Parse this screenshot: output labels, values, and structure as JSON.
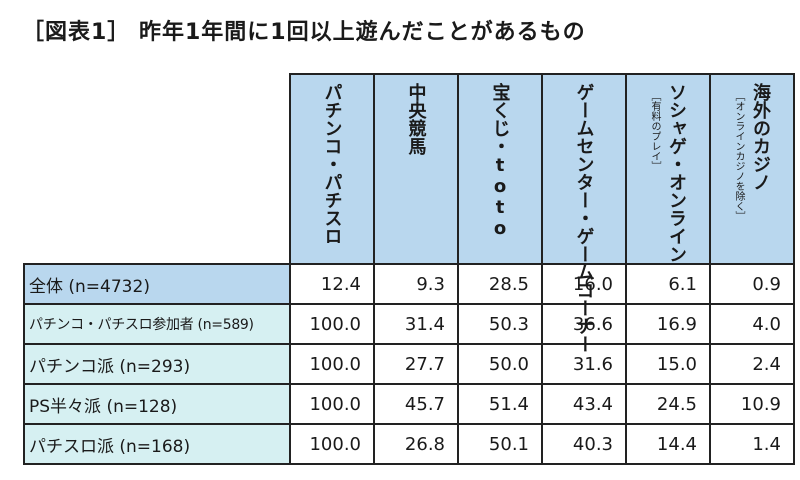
{
  "title": "［図表1］ 昨年1年間に1回以上遊んだことがあるもの",
  "columns": [
    {
      "label": "パチンコ・パチスロ",
      "note": ""
    },
    {
      "label": "中央競馬",
      "note": ""
    },
    {
      "label": "宝くじ・toto",
      "note": ""
    },
    {
      "label": "ゲームセンター・ゲームコーナー",
      "note": ""
    },
    {
      "label": "ソシャゲ・オンライン",
      "note": "［有料のプレイ］"
    },
    {
      "label": "海外のカジノ",
      "note": "［オンラインカジノを除く］"
    }
  ],
  "rows": [
    {
      "label": "全体 (n=4732)",
      "values": [
        "12.4",
        "9.3",
        "28.5",
        "16.0",
        "6.1",
        "0.9"
      ]
    },
    {
      "label": "パチンコ・パチスロ参加者 (n=589)",
      "values": [
        "100.0",
        "31.4",
        "50.3",
        "36.6",
        "16.9",
        "4.0"
      ]
    },
    {
      "label": "パチンコ派 (n=293)",
      "values": [
        "100.0",
        "27.7",
        "50.0",
        "31.6",
        "15.0",
        "2.4"
      ]
    },
    {
      "label": "PS半々派 (n=128)",
      "values": [
        "100.0",
        "45.7",
        "51.4",
        "43.4",
        "24.5",
        "10.9"
      ]
    },
    {
      "label": "パチスロ派 (n=168)",
      "values": [
        "100.0",
        "26.8",
        "50.1",
        "40.3",
        "14.4",
        "1.4"
      ]
    }
  ],
  "colors": {
    "header_blue": "#b9d7ee",
    "row_light": "#d6f0f2"
  }
}
